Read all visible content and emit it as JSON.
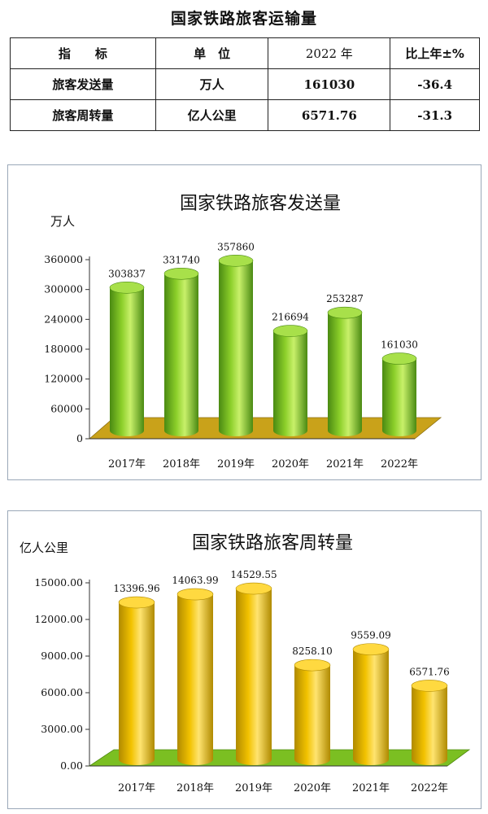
{
  "page": {
    "title": "国家铁路旅客运输量"
  },
  "table": {
    "headers": [
      "指　　标",
      "单　位",
      "2022 年",
      "比上年±%"
    ],
    "rows": [
      [
        "旅客发送量",
        "万人",
        "161030",
        "-36.4"
      ],
      [
        "旅客周转量",
        "亿人公里",
        "6571.76",
        "-31.3"
      ]
    ]
  },
  "colors": {
    "green_bar": "#8ccf2a",
    "gold_bar": "#f2c200",
    "floor1": "#c9a21a",
    "floor2": "#7bbf22"
  },
  "chart_data": [
    {
      "type": "bar",
      "title": "国家铁路旅客发送量",
      "ylabel": "万人",
      "categories": [
        "2017年",
        "2018年",
        "2019年",
        "2020年",
        "2021年",
        "2022年"
      ],
      "values": [
        303837,
        331740,
        357860,
        216694,
        253287,
        161030
      ],
      "value_labels": [
        "303837",
        "331740",
        "357860",
        "216694",
        "253287",
        "161030"
      ],
      "yticks": [
        "0",
        "60000",
        "120000",
        "180000",
        "240000",
        "300000",
        "360000"
      ],
      "ylim": [
        0,
        360000
      ]
    },
    {
      "type": "bar",
      "title": "国家铁路旅客周转量",
      "ylabel": "亿人公里",
      "categories": [
        "2017年",
        "2018年",
        "2019年",
        "2020年",
        "2021年",
        "2022年"
      ],
      "values": [
        13396.96,
        14063.99,
        14529.55,
        8258.1,
        9559.09,
        6571.76
      ],
      "value_labels": [
        "13396.96",
        "14063.99",
        "14529.55",
        "8258.10",
        "9559.09",
        "6571.76"
      ],
      "yticks": [
        "0.00",
        "3000.00",
        "6000.00",
        "9000.00",
        "12000.00",
        "15000.00"
      ],
      "ylim": [
        0,
        15000
      ]
    }
  ]
}
